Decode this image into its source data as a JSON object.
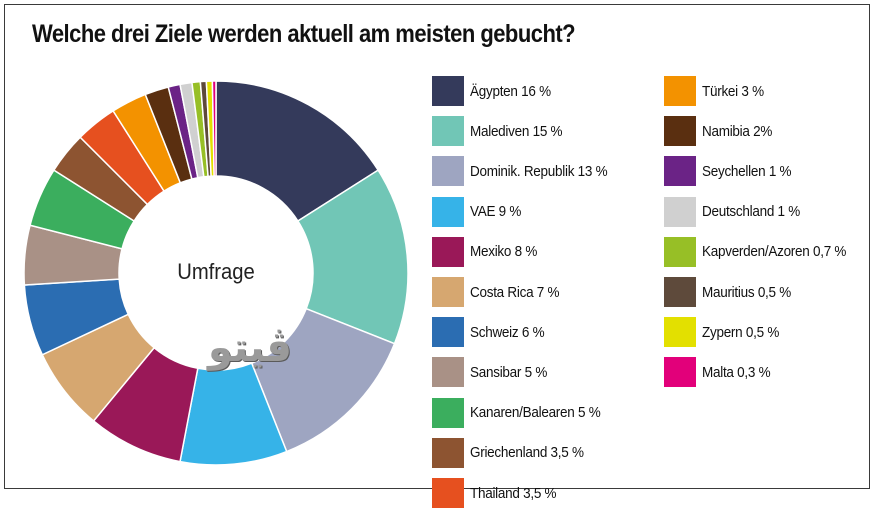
{
  "header": {
    "title": "Welche drei Ziele werden aktuell am meisten gebucht?"
  },
  "chart_data": {
    "type": "pie",
    "variant": "donut",
    "title": "Welche drei Ziele werden aktuell am meisten gebucht?",
    "center_label": "Umfrage",
    "unit": "%",
    "legend_placement": "right",
    "categories": [
      "Ägypten",
      "Malediven",
      "Dominik. Republik",
      "VAE",
      "Mexiko",
      "Costa Rica",
      "Schweiz",
      "Sansibar",
      "Kanaren/Balearen",
      "Griechenland",
      "Thailand",
      "Türkei",
      "Namibia",
      "Seychellen",
      "Deutschland",
      "Kapverden/Azoren",
      "Mauritius",
      "Zypern",
      "Malta"
    ],
    "values": [
      16,
      15,
      13,
      9,
      8,
      7,
      6,
      5,
      5,
      3.5,
      3.5,
      3,
      2,
      1,
      1,
      0.7,
      0.5,
      0.5,
      0.3
    ],
    "labels": [
      "Ägypten 16 %",
      "Malediven 15 %",
      "Dominik. Republik 13 %",
      "VAE 9 %",
      "Mexiko 8 %",
      "Costa Rica 7 %",
      "Schweiz 6 %",
      "Sansibar 5 %",
      "Kanaren/Balearen 5 %",
      "Griechenland 3,5 %",
      "Thailand 3,5 %",
      "Türkei 3 %",
      "Namibia 2%",
      "Seychellen 1 %",
      "Deutschland 1 %",
      "Kapverden/Azoren 0,7 %",
      "Mauritius 0,5 %",
      "Zypern 0,5 %",
      "Malta 0,3 %"
    ],
    "colors": [
      "#343a5b",
      "#71c6b6",
      "#9ea5c1",
      "#36b3e8",
      "#9a1858",
      "#d6a770",
      "#2b6db2",
      "#a99186",
      "#3bae5e",
      "#8d5431",
      "#e6501f",
      "#f39200",
      "#5a2f10",
      "#6b2386",
      "#d0d0d0",
      "#97bf26",
      "#5e4a3b",
      "#e3e000",
      "#e2007a"
    ]
  },
  "watermark": {
    "text": "ڤيتو"
  }
}
